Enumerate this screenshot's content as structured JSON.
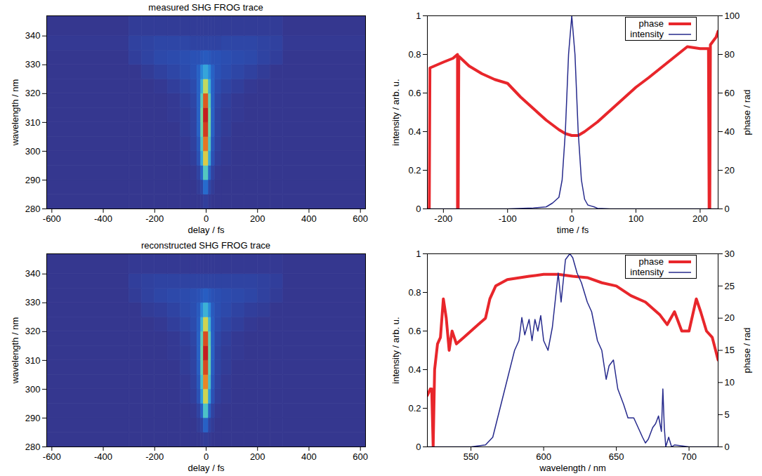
{
  "chart_data": [
    {
      "type": "heatmap",
      "title": "measured SHG FROG trace",
      "x_label": "delay / fs",
      "y_label": "wavelength / nm",
      "xlim": [
        -620,
        620
      ],
      "xticks": [
        -600,
        -400,
        -200,
        0,
        200,
        400,
        600
      ],
      "ylim": [
        280,
        347
      ],
      "yticks": [
        280,
        290,
        300,
        310,
        320,
        330,
        340
      ],
      "zlim": [
        0,
        1
      ],
      "x_edges": [
        -620,
        -300,
        -250,
        -200,
        -150,
        -100,
        -60,
        -35,
        -20,
        -10,
        10,
        20,
        35,
        60,
        100,
        150,
        200,
        250,
        300,
        620
      ],
      "y_edges": [
        280,
        285,
        290,
        295,
        300,
        305,
        310,
        315,
        320,
        325,
        330,
        335,
        340,
        347
      ],
      "z": [
        [
          0,
          0,
          0,
          0,
          0,
          0,
          0,
          0,
          0.01,
          0.03,
          0.01,
          0,
          0,
          0,
          0,
          0,
          0,
          0,
          0
        ],
        [
          0,
          0,
          0,
          0,
          0,
          0,
          0,
          0.02,
          0.06,
          0.18,
          0.06,
          0.02,
          0,
          0,
          0,
          0,
          0,
          0,
          0
        ],
        [
          0,
          0,
          0,
          0,
          0,
          0,
          0.01,
          0.05,
          0.16,
          0.42,
          0.16,
          0.05,
          0.01,
          0,
          0,
          0,
          0,
          0,
          0
        ],
        [
          0,
          0,
          0,
          0,
          0,
          0.01,
          0.03,
          0.1,
          0.33,
          0.68,
          0.33,
          0.1,
          0.03,
          0.01,
          0,
          0,
          0,
          0,
          0
        ],
        [
          0,
          0,
          0,
          0,
          0,
          0.01,
          0.04,
          0.12,
          0.42,
          0.85,
          0.42,
          0.12,
          0.04,
          0.01,
          0,
          0,
          0,
          0,
          0
        ],
        [
          0,
          0,
          0,
          0,
          0,
          0.02,
          0.05,
          0.15,
          0.48,
          0.95,
          0.48,
          0.15,
          0.05,
          0.02,
          0,
          0,
          0,
          0,
          0
        ],
        [
          0,
          0,
          0,
          0,
          0.01,
          0.02,
          0.05,
          0.15,
          0.5,
          1,
          0.5,
          0.15,
          0.05,
          0.02,
          0.01,
          0,
          0,
          0,
          0
        ],
        [
          0,
          0,
          0,
          0,
          0.01,
          0.03,
          0.06,
          0.15,
          0.45,
          0.9,
          0.45,
          0.15,
          0.06,
          0.03,
          0.01,
          0,
          0,
          0,
          0
        ],
        [
          0,
          0,
          0,
          0.01,
          0.03,
          0.05,
          0.08,
          0.15,
          0.35,
          0.62,
          0.35,
          0.15,
          0.08,
          0.05,
          0.03,
          0.01,
          0,
          0,
          0
        ],
        [
          0,
          0,
          0.02,
          0.04,
          0.06,
          0.08,
          0.1,
          0.15,
          0.25,
          0.32,
          0.25,
          0.15,
          0.1,
          0.08,
          0.06,
          0.04,
          0.02,
          0,
          0
        ],
        [
          0,
          0.03,
          0.05,
          0.07,
          0.08,
          0.09,
          0.1,
          0.1,
          0.12,
          0.13,
          0.12,
          0.1,
          0.1,
          0.09,
          0.08,
          0.07,
          0.05,
          0.03,
          0
        ],
        [
          0.01,
          0.04,
          0.05,
          0.06,
          0.06,
          0.06,
          0.05,
          0.05,
          0.05,
          0.05,
          0.05,
          0.05,
          0.05,
          0.06,
          0.06,
          0.06,
          0.05,
          0.04,
          0.01
        ],
        [
          0,
          0.02,
          0.02,
          0.02,
          0.02,
          0.02,
          0.02,
          0.02,
          0.02,
          0.02,
          0.02,
          0.02,
          0.02,
          0.02,
          0.02,
          0.02,
          0.02,
          0.02,
          0
        ]
      ]
    },
    {
      "type": "line",
      "x_label": "time / fs",
      "y_label": "intensity / arb. u.",
      "y2_label": "phase / rad",
      "xlim": [
        -225,
        228
      ],
      "xticks": [
        -200,
        -100,
        0,
        100,
        200
      ],
      "ylim": [
        0,
        1
      ],
      "yticks": [
        0,
        0.2,
        0.4,
        0.6,
        0.8,
        1
      ],
      "y2lim": [
        0,
        100
      ],
      "y2ticks": [
        0,
        20,
        40,
        60,
        80,
        100
      ],
      "legend": "top-right",
      "series": [
        {
          "name": "phase",
          "color": "#e8262b",
          "axis": "y2",
          "x": [
            -225,
            -222,
            -221,
            -200,
            -185,
            -178,
            -178,
            -177,
            -176,
            -160,
            -140,
            -120,
            -100,
            -80,
            -60,
            -40,
            -20,
            -10,
            0,
            10,
            20,
            40,
            60,
            80,
            100,
            120,
            150,
            180,
            200,
            213,
            214,
            215,
            216,
            225,
            228
          ],
          "values": [
            0,
            0,
            73,
            76,
            78,
            80,
            0,
            0,
            79,
            74,
            70,
            67,
            65,
            58,
            52,
            46,
            41,
            39,
            38,
            38,
            40,
            45,
            51,
            57,
            63,
            68,
            76,
            84,
            83,
            83,
            0,
            0,
            85,
            89,
            92
          ]
        },
        {
          "name": "intensity",
          "color": "#262a8c",
          "x": [
            -225,
            -100,
            -60,
            -40,
            -30,
            -20,
            -15,
            -10,
            -5,
            0,
            5,
            10,
            15,
            20,
            25,
            30,
            35,
            40,
            60,
            100,
            228
          ],
          "values": [
            0,
            0,
            0.005,
            0.01,
            0.03,
            0.06,
            0.15,
            0.4,
            0.8,
            1,
            0.8,
            0.4,
            0.15,
            0.05,
            0.02,
            0.015,
            0.01,
            0.003,
            0,
            0,
            0
          ]
        }
      ]
    },
    {
      "type": "heatmap",
      "title": "reconstructed SHG FROG trace",
      "x_label": "delay / fs",
      "y_label": "wavelength / nm",
      "xlim": [
        -620,
        620
      ],
      "xticks": [
        -600,
        -400,
        -200,
        0,
        200,
        400,
        600
      ],
      "ylim": [
        280,
        347
      ],
      "yticks": [
        280,
        290,
        300,
        310,
        320,
        330,
        340
      ],
      "zlim": [
        0,
        1
      ],
      "x_edges": [
        -620,
        -300,
        -250,
        -200,
        -150,
        -100,
        -60,
        -35,
        -20,
        -10,
        10,
        20,
        35,
        60,
        100,
        150,
        200,
        250,
        300,
        620
      ],
      "y_edges": [
        280,
        285,
        290,
        295,
        300,
        305,
        310,
        315,
        320,
        325,
        330,
        335,
        340,
        347
      ],
      "z": [
        [
          0,
          0,
          0,
          0,
          0,
          0,
          0,
          0,
          0.01,
          0.02,
          0.01,
          0,
          0,
          0,
          0,
          0,
          0,
          0,
          0
        ],
        [
          0,
          0,
          0,
          0,
          0,
          0,
          0,
          0.02,
          0.05,
          0.15,
          0.05,
          0.02,
          0,
          0,
          0,
          0,
          0,
          0,
          0
        ],
        [
          0,
          0,
          0,
          0,
          0,
          0,
          0.01,
          0.05,
          0.15,
          0.4,
          0.15,
          0.05,
          0.01,
          0,
          0,
          0,
          0,
          0,
          0
        ],
        [
          0,
          0,
          0,
          0,
          0,
          0.01,
          0.03,
          0.1,
          0.3,
          0.65,
          0.3,
          0.1,
          0.03,
          0.01,
          0,
          0,
          0,
          0,
          0
        ],
        [
          0,
          0,
          0,
          0,
          0,
          0.01,
          0.04,
          0.12,
          0.4,
          0.82,
          0.4,
          0.12,
          0.04,
          0.01,
          0,
          0,
          0,
          0,
          0
        ],
        [
          0,
          0,
          0,
          0,
          0,
          0.02,
          0.05,
          0.14,
          0.46,
          0.93,
          0.46,
          0.14,
          0.05,
          0.02,
          0,
          0,
          0,
          0,
          0
        ],
        [
          0,
          0,
          0,
          0,
          0.01,
          0.02,
          0.05,
          0.15,
          0.48,
          1,
          0.48,
          0.15,
          0.05,
          0.02,
          0.01,
          0,
          0,
          0,
          0
        ],
        [
          0,
          0,
          0,
          0,
          0.01,
          0.03,
          0.06,
          0.15,
          0.45,
          0.92,
          0.45,
          0.15,
          0.06,
          0.03,
          0.01,
          0,
          0,
          0,
          0
        ],
        [
          0,
          0,
          0,
          0.01,
          0.03,
          0.05,
          0.08,
          0.14,
          0.36,
          0.65,
          0.36,
          0.14,
          0.08,
          0.05,
          0.03,
          0.01,
          0,
          0,
          0
        ],
        [
          0,
          0,
          0.02,
          0.03,
          0.05,
          0.07,
          0.09,
          0.13,
          0.25,
          0.35,
          0.25,
          0.13,
          0.09,
          0.07,
          0.05,
          0.03,
          0.02,
          0,
          0
        ],
        [
          0,
          0.02,
          0.04,
          0.06,
          0.07,
          0.08,
          0.09,
          0.1,
          0.12,
          0.14,
          0.12,
          0.1,
          0.09,
          0.08,
          0.07,
          0.06,
          0.04,
          0.02,
          0
        ],
        [
          0,
          0.03,
          0.04,
          0.05,
          0.05,
          0.05,
          0.05,
          0.05,
          0.05,
          0.05,
          0.05,
          0.05,
          0.05,
          0.05,
          0.05,
          0.05,
          0.04,
          0.03,
          0
        ],
        [
          0,
          0.01,
          0.01,
          0.01,
          0.01,
          0.01,
          0.01,
          0.01,
          0.01,
          0.01,
          0.01,
          0.01,
          0.01,
          0.01,
          0.01,
          0.01,
          0.01,
          0.01,
          0
        ]
      ]
    },
    {
      "type": "line",
      "x_label": "wavelength / nm",
      "y_label": "intensity / arb. u.",
      "y2_label": "phase / rad",
      "xlim": [
        520,
        720
      ],
      "xticks": [
        550,
        600,
        650,
        700
      ],
      "ylim": [
        0,
        1
      ],
      "yticks": [
        0,
        0.2,
        0.4,
        0.6,
        0.8,
        1
      ],
      "y2lim": [
        0,
        30
      ],
      "y2ticks": [
        0,
        5,
        10,
        15,
        20,
        25,
        30
      ],
      "legend": "top-right",
      "series": [
        {
          "name": "phase",
          "color": "#e8262b",
          "axis": "y2",
          "x": [
            520,
            522,
            523,
            524,
            525,
            527,
            529,
            531,
            533,
            535,
            537,
            540,
            545,
            550,
            555,
            560,
            563,
            567,
            575,
            590,
            600,
            610,
            620,
            630,
            640,
            650,
            660,
            670,
            680,
            685,
            690,
            695,
            700,
            705,
            708,
            712,
            716,
            720
          ],
          "values": [
            8,
            9,
            9,
            0,
            12,
            16,
            17,
            23,
            20,
            15,
            18,
            16,
            17,
            18,
            19,
            20,
            23,
            25,
            26,
            26.5,
            26.8,
            26.8,
            26.5,
            26.3,
            25.5,
            25,
            23.5,
            22.5,
            20.5,
            19,
            21,
            18,
            18,
            23,
            21,
            18,
            17,
            13.5
          ]
        },
        {
          "name": "intensity",
          "color": "#262a8c",
          "x": [
            520,
            550,
            560,
            565,
            570,
            575,
            580,
            583,
            585,
            587,
            590,
            592,
            594,
            596,
            598,
            600,
            603,
            606,
            610,
            612,
            615,
            618,
            620,
            623,
            626,
            630,
            633,
            637,
            640,
            643,
            645,
            648,
            651,
            655,
            658,
            662,
            665,
            668,
            670,
            672,
            675,
            677,
            679,
            681,
            682,
            683,
            684,
            686,
            688,
            690,
            700,
            720
          ],
          "values": [
            0,
            0,
            0.01,
            0.05,
            0.2,
            0.35,
            0.5,
            0.55,
            0.67,
            0.58,
            0.66,
            0.55,
            0.66,
            0.6,
            0.68,
            0.55,
            0.5,
            0.62,
            0.9,
            0.75,
            0.97,
            1,
            0.98,
            0.9,
            0.85,
            0.75,
            0.7,
            0.55,
            0.5,
            0.35,
            0.42,
            0.45,
            0.3,
            0.22,
            0.15,
            0.15,
            0.1,
            0.05,
            0.02,
            0.04,
            0.1,
            0.12,
            0.16,
            0.08,
            0.3,
            0.1,
            0,
            0.05,
            0,
            0.01,
            0,
            0
          ]
        }
      ]
    }
  ]
}
